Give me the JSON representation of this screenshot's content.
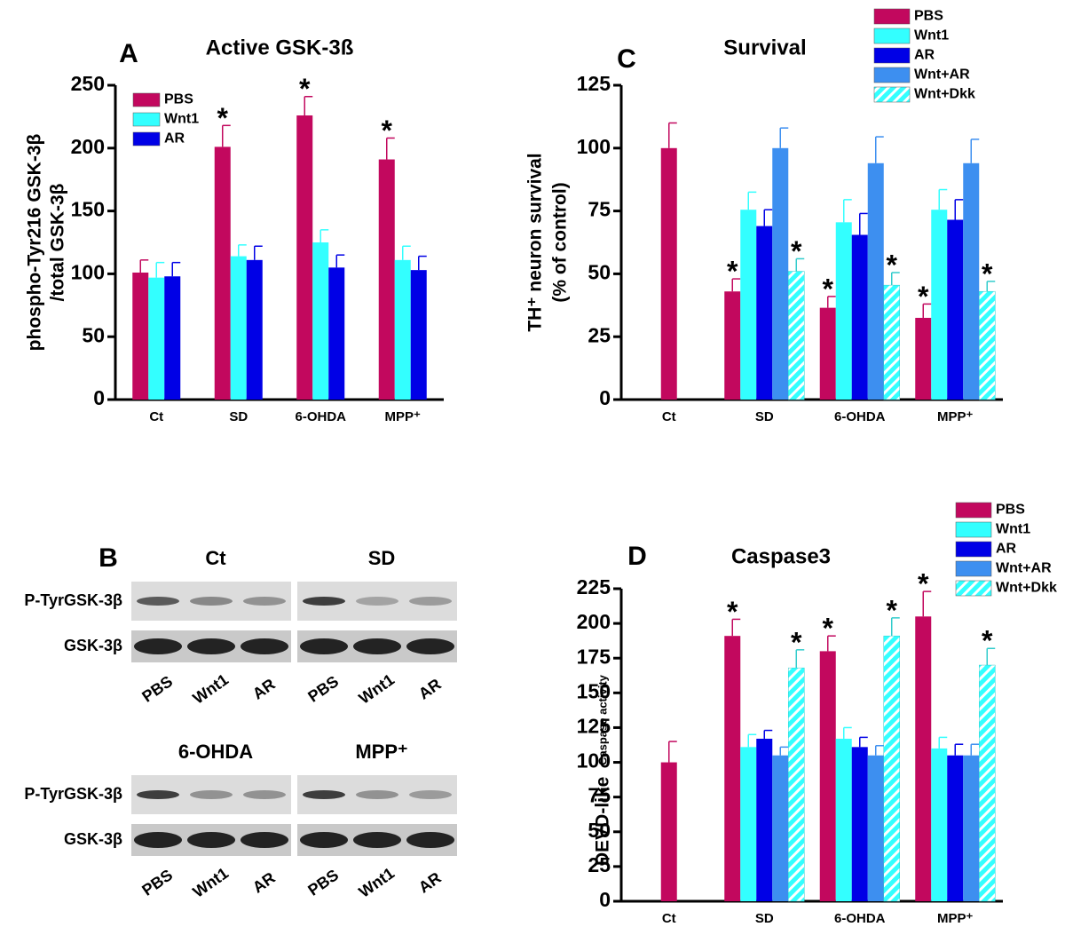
{
  "chart_data": [
    {
      "type": "bar",
      "panel": "A",
      "title": "Active GSK-3ß",
      "ylabel": [
        "phospho-Tyr216 GSK-3β",
        "/total GSK-3β"
      ],
      "categories": [
        "Ct",
        "SD",
        "6-OHDA",
        "MPP⁺"
      ],
      "ylim": [
        0,
        250
      ],
      "yticks": [
        0,
        50,
        100,
        150,
        200,
        250
      ],
      "series": [
        {
          "name": "PBS",
          "color": "#c2085e",
          "values": [
            101,
            201,
            226,
            191
          ],
          "errors": [
            10,
            17,
            15,
            17
          ],
          "stars": [
            null,
            "*",
            "*",
            "*"
          ]
        },
        {
          "name": "Wnt1",
          "color": "#33ffff",
          "values": [
            97,
            114,
            125,
            111
          ],
          "errors": [
            12,
            9,
            10,
            11
          ]
        },
        {
          "name": "AR",
          "color": "#0000e6",
          "values": [
            98,
            111,
            105,
            103
          ],
          "errors": [
            11,
            11,
            10,
            11
          ]
        }
      ]
    },
    {
      "type": "bar",
      "panel": "C",
      "title": "Survival",
      "ylabel": [
        "TH⁺ neuron survival",
        "(% of control)"
      ],
      "categories": [
        "Ct",
        "SD",
        "6-OHDA",
        "MPP⁺"
      ],
      "ylim": [
        0,
        125
      ],
      "yticks": [
        0,
        25,
        50,
        75,
        100,
        125
      ],
      "series": [
        {
          "name": "PBS",
          "color": "#c2085e",
          "values": [
            100,
            43,
            36.5,
            32.5
          ],
          "errors": [
            10,
            5,
            4.5,
            5.5
          ],
          "stars": [
            null,
            "*",
            "*",
            "*"
          ]
        },
        {
          "name": "Wnt1",
          "color": "#33ffff",
          "values": [
            null,
            75.5,
            70.5,
            75.5
          ],
          "errors": [
            null,
            7,
            9,
            8
          ]
        },
        {
          "name": "AR",
          "color": "#0000e6",
          "values": [
            null,
            69,
            65.5,
            71.5
          ],
          "errors": [
            null,
            6.5,
            8.5,
            8
          ]
        },
        {
          "name": "Wnt+AR",
          "color": "#3d8ff0",
          "values": [
            null,
            100,
            94,
            94
          ],
          "errors": [
            null,
            8,
            10.5,
            9.5
          ]
        },
        {
          "name": "Wnt+Dkk",
          "color": "#33ffff",
          "hatch": true,
          "values": [
            null,
            51,
            45.5,
            43
          ],
          "errors": [
            null,
            5,
            5,
            4
          ],
          "stars": [
            null,
            "*",
            "*",
            "*"
          ]
        }
      ]
    },
    {
      "type": "bar",
      "panel": "D",
      "title": "Caspase3",
      "ylabel": [
        "DEVD-like",
        "Caspase activity"
      ],
      "categories": [
        "Ct",
        "SD",
        "6-OHDA",
        "MPP⁺"
      ],
      "ylim": [
        0,
        225
      ],
      "yticks": [
        0,
        25,
        50,
        75,
        100,
        125,
        150,
        175,
        200,
        225
      ],
      "series": [
        {
          "name": "PBS",
          "color": "#c2085e",
          "values": [
            100,
            191,
            180,
            205
          ],
          "errors": [
            15,
            12,
            11,
            18
          ],
          "stars": [
            null,
            "*",
            "*",
            "*"
          ]
        },
        {
          "name": "Wnt1",
          "color": "#33ffff",
          "values": [
            null,
            111,
            117,
            110
          ],
          "errors": [
            null,
            9,
            8,
            8
          ]
        },
        {
          "name": "AR",
          "color": "#0000e6",
          "values": [
            null,
            117,
            111,
            105
          ],
          "errors": [
            null,
            6,
            7,
            8
          ]
        },
        {
          "name": "Wnt+AR",
          "color": "#3d8ff0",
          "values": [
            null,
            105,
            105,
            105
          ],
          "errors": [
            null,
            6,
            7,
            8
          ]
        },
        {
          "name": "Wnt+Dkk",
          "color": "#33ffff",
          "hatch": true,
          "values": [
            null,
            168,
            191,
            170
          ],
          "errors": [
            null,
            13,
            13,
            12
          ],
          "stars": [
            null,
            "*",
            "*",
            "*"
          ]
        }
      ]
    }
  ],
  "blot": {
    "panel": "B",
    "rows": [
      "P-TyrGSK-3β",
      "GSK-3β"
    ],
    "groups": [
      {
        "title": "Ct",
        "lanes": [
          "PBS",
          "Wnt1",
          "AR"
        ]
      },
      {
        "title": "SD",
        "lanes": [
          "PBS",
          "Wnt1",
          "AR"
        ]
      },
      {
        "title": "6-OHDA",
        "lanes": [
          "PBS",
          "Wnt1",
          "AR"
        ]
      },
      {
        "title": "MPP⁺",
        "lanes": [
          "PBS",
          "Wnt1",
          "AR"
        ]
      }
    ]
  }
}
